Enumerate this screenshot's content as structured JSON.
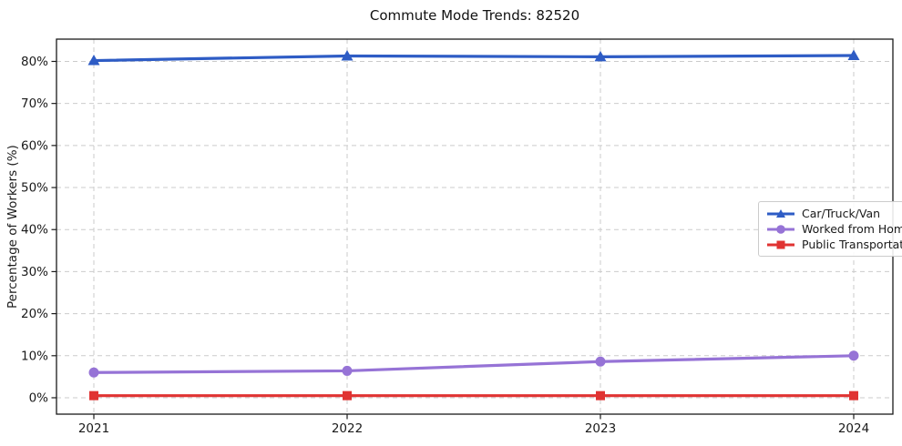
{
  "chart_data": {
    "type": "line",
    "title": "Commute Mode Trends: 82520",
    "xlabel": "",
    "ylabel": "Percentage of Workers (%)",
    "x_tick_labels": [
      "2021",
      "2022",
      "2023",
      "2024"
    ],
    "y_ticks": [
      0,
      10,
      20,
      30,
      40,
      50,
      60,
      70,
      80
    ],
    "y_tick_suffix": "%",
    "ylim": [
      -3.9,
      85.3
    ],
    "grid": true,
    "grid_style": "dashed",
    "legend_position": "center-right",
    "series": [
      {
        "name": "Car/Truck/Van",
        "marker": "triangle",
        "color": "#2e5cc5",
        "values": [
          80.2,
          81.3,
          81.1,
          81.4
        ]
      },
      {
        "name": "Worked from Home",
        "marker": "circle",
        "color": "#9673d6",
        "values": [
          6.0,
          6.4,
          8.6,
          10.0
        ]
      },
      {
        "name": "Public Transportation",
        "marker": "square",
        "color": "#e03332",
        "values": [
          0.5,
          0.5,
          0.5,
          0.5
        ]
      }
    ],
    "colors": {
      "grid": "#cbcbcb",
      "spine": "#1a1a1a",
      "background": "#ffffff"
    }
  }
}
